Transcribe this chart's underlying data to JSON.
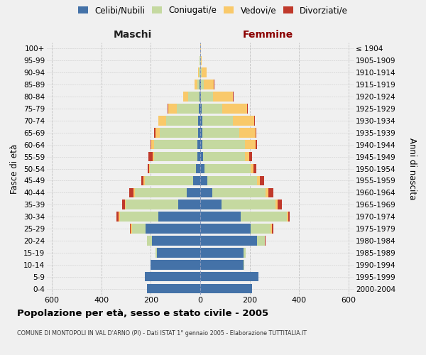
{
  "age_groups_bottom_to_top": [
    "0-4",
    "5-9",
    "10-14",
    "15-19",
    "20-24",
    "25-29",
    "30-34",
    "35-39",
    "40-44",
    "45-49",
    "50-54",
    "55-59",
    "60-64",
    "65-69",
    "70-74",
    "75-79",
    "80-84",
    "85-89",
    "90-94",
    "95-99",
    "100+"
  ],
  "birth_years_bottom_to_top": [
    "2000-2004",
    "1995-1999",
    "1990-1994",
    "1985-1989",
    "1980-1984",
    "1975-1979",
    "1970-1974",
    "1965-1969",
    "1960-1964",
    "1955-1959",
    "1950-1954",
    "1945-1949",
    "1940-1944",
    "1935-1939",
    "1930-1934",
    "1925-1929",
    "1920-1924",
    "1915-1919",
    "1910-1914",
    "1905-1909",
    "≤ 1904"
  ],
  "maschi": {
    "celibi": [
      215,
      225,
      200,
      175,
      195,
      220,
      170,
      90,
      55,
      30,
      18,
      12,
      12,
      10,
      8,
      5,
      3,
      2,
      0,
      0,
      0
    ],
    "coniugati": [
      0,
      0,
      0,
      5,
      20,
      55,
      155,
      210,
      210,
      195,
      185,
      175,
      175,
      155,
      130,
      90,
      45,
      10,
      5,
      2,
      0
    ],
    "vedovi": [
      0,
      0,
      0,
      0,
      0,
      5,
      5,
      5,
      5,
      5,
      5,
      5,
      10,
      15,
      30,
      35,
      20,
      10,
      5,
      2,
      0
    ],
    "divorziati": [
      0,
      0,
      0,
      0,
      0,
      5,
      10,
      12,
      18,
      8,
      5,
      18,
      5,
      8,
      2,
      2,
      2,
      0,
      0,
      0,
      0
    ]
  },
  "femmine": {
    "nubili": [
      210,
      235,
      175,
      175,
      230,
      205,
      165,
      85,
      50,
      30,
      18,
      12,
      10,
      8,
      8,
      5,
      3,
      2,
      0,
      0,
      0
    ],
    "coniugate": [
      0,
      0,
      2,
      8,
      30,
      80,
      185,
      220,
      215,
      200,
      185,
      170,
      170,
      150,
      125,
      85,
      50,
      12,
      5,
      2,
      0
    ],
    "vedove": [
      0,
      0,
      0,
      0,
      2,
      5,
      5,
      8,
      10,
      10,
      12,
      15,
      45,
      65,
      85,
      100,
      80,
      40,
      20,
      5,
      2
    ],
    "divorziate": [
      0,
      0,
      0,
      0,
      2,
      5,
      8,
      18,
      20,
      18,
      12,
      12,
      5,
      5,
      2,
      2,
      2,
      2,
      0,
      0,
      0
    ]
  },
  "colors": {
    "celibi": "#4472A8",
    "coniugati": "#C5D9A0",
    "vedovi": "#F9C96A",
    "divorziati": "#C0392B"
  },
  "xlim": [
    -620,
    620
  ],
  "xticks": [
    -600,
    -400,
    -200,
    0,
    200,
    400,
    600
  ],
  "xticklabels": [
    "600",
    "400",
    "200",
    "0",
    "200",
    "400",
    "600"
  ],
  "title_main": "Popolazione per età, sesso e stato civile - 2005",
  "title_sub": "COMUNE DI MONTOPOLI IN VAL D'ARNO (PI) - Dati ISTAT 1° gennaio 2005 - Elaborazione TUTTITALIA.IT",
  "ylabel_left": "Fasce di età",
  "ylabel_right": "Anni di nascita",
  "label_maschi": "Maschi",
  "label_femmine": "Femmine",
  "legend_celibi": "Celibi/Nubili",
  "legend_coniugati": "Coniugati/e",
  "legend_vedovi": "Vedovi/e",
  "legend_divorziati": "Divorziati/e",
  "bg_color": "#f0f0f0",
  "plot_bg": "#f0f0f0",
  "maschi_color": "#222222",
  "femmine_color": "#8B0000"
}
